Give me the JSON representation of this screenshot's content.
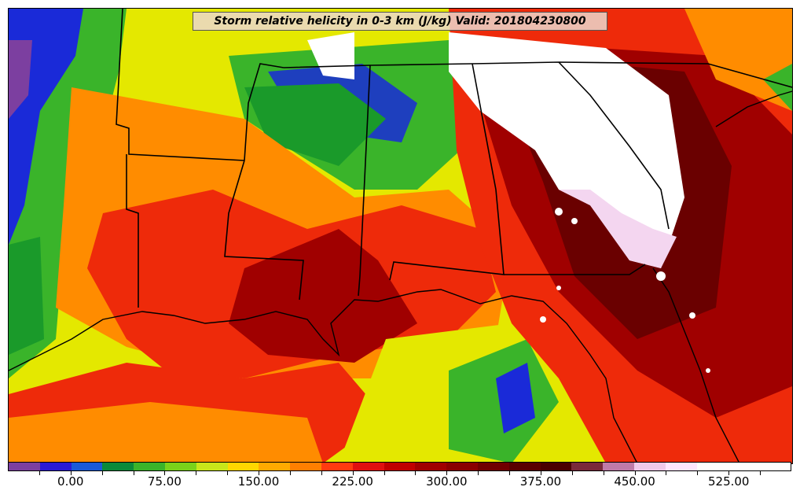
{
  "title": "Storm relative helicity in 0-3 km (J/kg) Valid: 201804230800",
  "colorbar": {
    "labels": [
      "0.00",
      "75.00",
      "150.00",
      "225.00",
      "300.00",
      "375.00",
      "450.00",
      "525.00"
    ],
    "colors": [
      "#7c3fa0",
      "#2a1ad6",
      "#1a5ad8",
      "#0a8a3a",
      "#3ab42a",
      "#7ad21a",
      "#c8e61a",
      "#ffd700",
      "#ffaa00",
      "#ff7f00",
      "#ff3a10",
      "#e01010",
      "#c00000",
      "#a00000",
      "#8a0000",
      "#700000",
      "#5a0000",
      "#4a0000",
      "#7a2a3a",
      "#c07aa8",
      "#f0c8ea",
      "#ffe6ff",
      "#ffffff",
      "#ffffff",
      "#ffffff"
    ]
  },
  "map": {
    "colors": {
      "land_low": "#3ab42a",
      "yellow": "#e4e800",
      "orange": "#ff8c00",
      "red": "#ee2a0a",
      "darkred": "#a00000",
      "maroon": "#6a0000",
      "white": "#ffffff",
      "pink": "#f4d6f0",
      "blue": "#1a2ad8",
      "purple": "#7c3fa0",
      "green": "#1a9a2a"
    }
  }
}
